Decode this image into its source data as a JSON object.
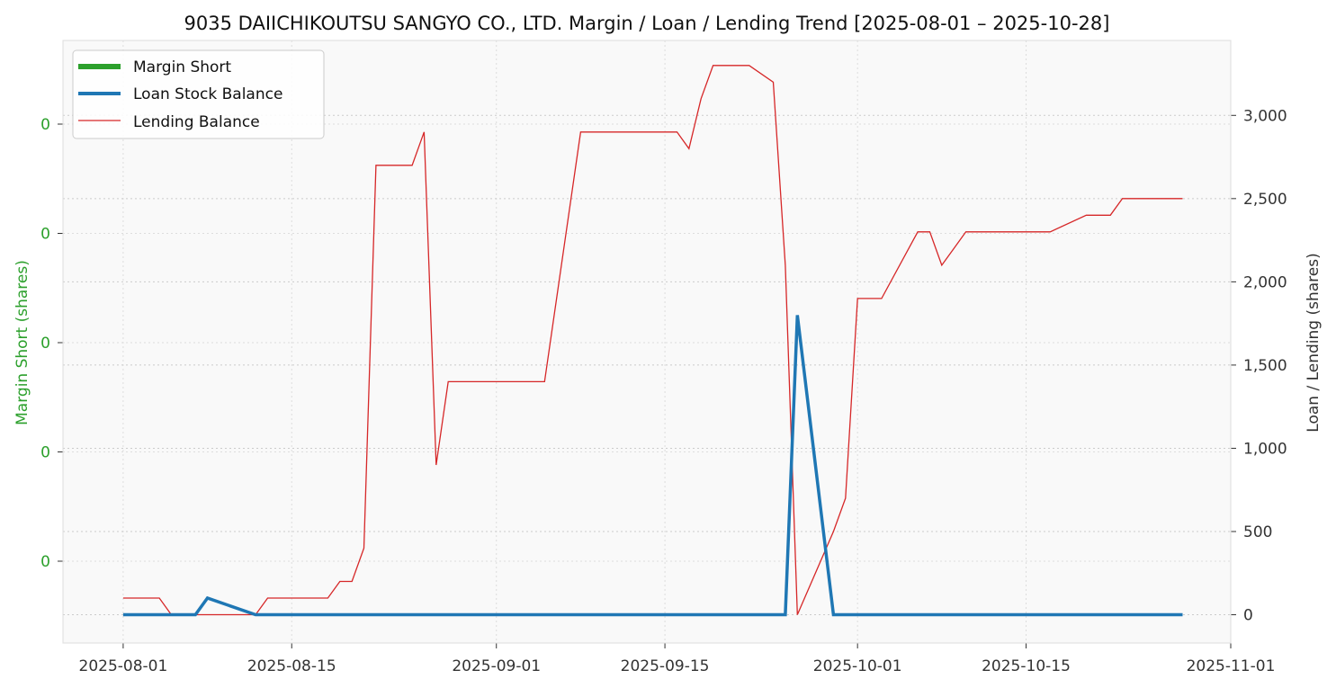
{
  "chart_data": {
    "type": "line",
    "title": "9035 DAIICHIKOUTSU SANGYO CO., LTD. Margin / Loan / Lending Trend [2025-08-01 – 2025-10-28]",
    "xlabel": "",
    "ylabel_left": "Margin Short (shares)",
    "ylabel_right": "Loan / Lending (shares)",
    "x_range": [
      "2025-07-27",
      "2025-11-01"
    ],
    "x_ticks": [
      "2025-08-01",
      "2025-08-15",
      "2025-09-01",
      "2025-09-15",
      "2025-10-01",
      "2025-10-15",
      "2025-11-01"
    ],
    "y_right_range": [
      -170,
      3450
    ],
    "y_right_ticks": [
      0,
      500,
      1000,
      1500,
      2000,
      2500,
      3000
    ],
    "y_right_tick_labels": [
      "0",
      "500",
      "1,000",
      "1,500",
      "2,000",
      "2,500",
      "3,000"
    ],
    "y_left_tick_labels": [
      "0",
      "0",
      "0",
      "0",
      "0"
    ],
    "grid": true,
    "legend_position": "top-left",
    "colors": {
      "margin_short": "#2ca02c",
      "loan": "#1f77b4",
      "lending": "#d62728",
      "background": "#f9f9f9"
    },
    "series": [
      {
        "name": "Margin Short",
        "axis": "left",
        "x": [],
        "values": []
      },
      {
        "name": "Loan Stock Balance",
        "axis": "right",
        "x": [
          "2025-08-01",
          "2025-08-04",
          "2025-08-05",
          "2025-08-06",
          "2025-08-07",
          "2025-08-08",
          "2025-08-12",
          "2025-08-13",
          "2025-08-14",
          "2025-08-15",
          "2025-08-18",
          "2025-08-19",
          "2025-08-20",
          "2025-08-21",
          "2025-08-22",
          "2025-08-25",
          "2025-08-26",
          "2025-08-27",
          "2025-08-28",
          "2025-08-29",
          "2025-09-01",
          "2025-09-02",
          "2025-09-03",
          "2025-09-04",
          "2025-09-05",
          "2025-09-08",
          "2025-09-09",
          "2025-09-10",
          "2025-09-11",
          "2025-09-12",
          "2025-09-16",
          "2025-09-17",
          "2025-09-18",
          "2025-09-19",
          "2025-09-22",
          "2025-09-24",
          "2025-09-25",
          "2025-09-26",
          "2025-09-29",
          "2025-09-30",
          "2025-10-01",
          "2025-10-02",
          "2025-10-03",
          "2025-10-06",
          "2025-10-07",
          "2025-10-08",
          "2025-10-09",
          "2025-10-10",
          "2025-10-14",
          "2025-10-15",
          "2025-10-16",
          "2025-10-17",
          "2025-10-20",
          "2025-10-21",
          "2025-10-22",
          "2025-10-23",
          "2025-10-24",
          "2025-10-27",
          "2025-10-28"
        ],
        "values": [
          0,
          0,
          0,
          0,
          0,
          100,
          0,
          0,
          0,
          0,
          0,
          0,
          0,
          0,
          0,
          0,
          0,
          0,
          0,
          0,
          0,
          0,
          0,
          0,
          0,
          0,
          0,
          0,
          0,
          0,
          0,
          0,
          0,
          0,
          0,
          0,
          0,
          1800,
          0,
          0,
          0,
          0,
          0,
          0,
          0,
          0,
          0,
          0,
          0,
          0,
          0,
          0,
          0,
          0,
          0,
          0,
          0,
          0,
          0
        ]
      },
      {
        "name": "Lending Balance",
        "axis": "right",
        "x": [
          "2025-08-01",
          "2025-08-04",
          "2025-08-05",
          "2025-08-06",
          "2025-08-07",
          "2025-08-08",
          "2025-08-12",
          "2025-08-13",
          "2025-08-14",
          "2025-08-15",
          "2025-08-18",
          "2025-08-19",
          "2025-08-20",
          "2025-08-21",
          "2025-08-22",
          "2025-08-25",
          "2025-08-26",
          "2025-08-27",
          "2025-08-28",
          "2025-08-29",
          "2025-09-01",
          "2025-09-02",
          "2025-09-03",
          "2025-09-04",
          "2025-09-05",
          "2025-09-08",
          "2025-09-09",
          "2025-09-10",
          "2025-09-11",
          "2025-09-12",
          "2025-09-16",
          "2025-09-17",
          "2025-09-18",
          "2025-09-19",
          "2025-09-22",
          "2025-09-24",
          "2025-09-25",
          "2025-09-26",
          "2025-09-29",
          "2025-09-30",
          "2025-10-01",
          "2025-10-02",
          "2025-10-03",
          "2025-10-06",
          "2025-10-07",
          "2025-10-08",
          "2025-10-09",
          "2025-10-10",
          "2025-10-14",
          "2025-10-15",
          "2025-10-16",
          "2025-10-17",
          "2025-10-20",
          "2025-10-21",
          "2025-10-22",
          "2025-10-23",
          "2025-10-24",
          "2025-10-27",
          "2025-10-28"
        ],
        "values": [
          100,
          100,
          0,
          0,
          0,
          0,
          0,
          100,
          100,
          100,
          100,
          200,
          200,
          400,
          2700,
          2700,
          2900,
          900,
          1400,
          1400,
          1400,
          1400,
          1400,
          1400,
          1400,
          2900,
          2900,
          2900,
          2900,
          2900,
          2900,
          2800,
          3100,
          3300,
          3300,
          3200,
          2100,
          0,
          500,
          700,
          1900,
          1900,
          1900,
          2300,
          2300,
          2100,
          2200,
          2300,
          2300,
          2300,
          2300,
          2300,
          2400,
          2400,
          2400,
          2500,
          2500,
          2500,
          2500
        ]
      }
    ]
  }
}
